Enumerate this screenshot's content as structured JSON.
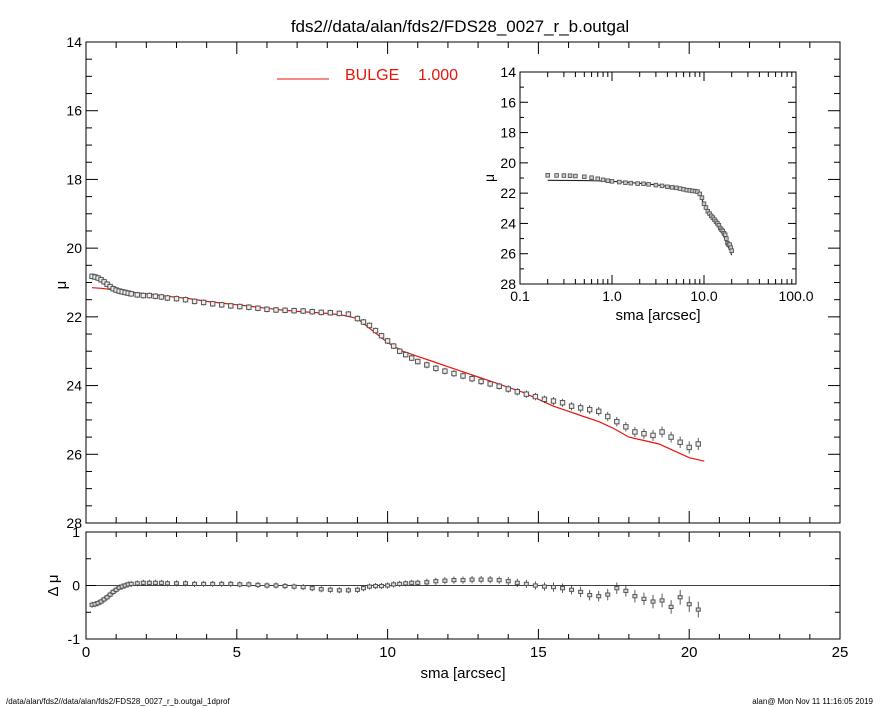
{
  "title": "fds2//data/alan/fds2/FDS28_0027_r_b.outgal",
  "footer": {
    "left": "/data/alan/fds2//data/alan/fds2/FDS28_0027_r_b.outgal_1dprof",
    "right": "alan@  Mon Nov 11 11:16:05 2019"
  },
  "colors": {
    "model": "#e8140a",
    "data": "#555555",
    "axes": "#000000"
  },
  "chart_data": [
    {
      "id": "main",
      "type": "line",
      "title": "fds2//data/alan/fds2/FDS28_0027_r_b.outgal",
      "xlabel": "",
      "ylabel": "μ",
      "xlim": [
        0,
        25
      ],
      "ylim": [
        28,
        14
      ],
      "y_inverted": true,
      "y_ticks": [
        14,
        16,
        18,
        20,
        22,
        24,
        26,
        28
      ],
      "legend": {
        "label": "BULGE",
        "value": "1.000",
        "position": "top-left"
      },
      "series": [
        {
          "name": "BULGE",
          "style": "line",
          "x": [
            0.2,
            0.5,
            1.0,
            1.5,
            2.0,
            2.5,
            3.0,
            3.5,
            4.0,
            4.5,
            5.0,
            5.5,
            6.0,
            6.5,
            7.0,
            7.5,
            8.0,
            8.5,
            9.0,
            9.5,
            10.0,
            10.5,
            11.0,
            11.5,
            12.0,
            12.5,
            13.0,
            13.5,
            14.0,
            14.5,
            15.0,
            15.5,
            16.0,
            16.5,
            17.0,
            17.5,
            18.0,
            18.5,
            19.0,
            19.5,
            20.0,
            20.5
          ],
          "y": [
            21.15,
            21.17,
            21.22,
            21.28,
            21.33,
            21.38,
            21.43,
            21.48,
            21.55,
            21.6,
            21.65,
            21.7,
            21.75,
            21.8,
            21.84,
            21.87,
            21.9,
            21.95,
            22.05,
            22.4,
            22.75,
            23.0,
            23.15,
            23.3,
            23.45,
            23.6,
            23.75,
            23.9,
            24.05,
            24.2,
            24.4,
            24.6,
            24.75,
            24.9,
            25.05,
            25.25,
            25.5,
            25.6,
            25.7,
            25.9,
            26.1,
            26.2
          ]
        },
        {
          "name": "",
          "style": "markers",
          "x": [
            0.2,
            0.3,
            0.4,
            0.5,
            0.6,
            0.7,
            0.8,
            0.9,
            1.0,
            1.1,
            1.2,
            1.3,
            1.4,
            1.5,
            1.7,
            1.9,
            2.1,
            2.3,
            2.5,
            2.7,
            3.0,
            3.3,
            3.6,
            3.9,
            4.2,
            4.5,
            4.8,
            5.1,
            5.4,
            5.7,
            6.0,
            6.3,
            6.6,
            6.9,
            7.2,
            7.5,
            7.8,
            8.1,
            8.4,
            8.7,
            9.0,
            9.2,
            9.4,
            9.6,
            9.8,
            10.0,
            10.2,
            10.4,
            10.6,
            10.8,
            11.0,
            11.3,
            11.6,
            11.9,
            12.2,
            12.5,
            12.8,
            13.1,
            13.4,
            13.7,
            14.0,
            14.3,
            14.6,
            14.9,
            15.2,
            15.5,
            15.8,
            16.1,
            16.4,
            16.7,
            17.0,
            17.3,
            17.6,
            17.9,
            18.2,
            18.5,
            18.8,
            19.1,
            19.4,
            19.7,
            20.0,
            20.3
          ],
          "y": [
            20.82,
            20.84,
            20.87,
            20.92,
            20.98,
            21.05,
            21.12,
            21.18,
            21.22,
            21.25,
            21.27,
            21.29,
            21.31,
            21.33,
            21.36,
            21.38,
            21.38,
            21.4,
            21.42,
            21.45,
            21.47,
            21.5,
            21.55,
            21.58,
            21.62,
            21.65,
            21.68,
            21.7,
            21.72,
            21.75,
            21.78,
            21.8,
            21.81,
            21.82,
            21.83,
            21.85,
            21.87,
            21.88,
            21.9,
            21.92,
            22.05,
            22.15,
            22.25,
            22.4,
            22.55,
            22.7,
            22.85,
            23.0,
            23.1,
            23.2,
            23.3,
            23.4,
            23.5,
            23.58,
            23.65,
            23.72,
            23.8,
            23.88,
            23.95,
            24.02,
            24.1,
            24.18,
            24.25,
            24.32,
            24.4,
            24.45,
            24.5,
            24.6,
            24.65,
            24.7,
            24.75,
            24.9,
            25.05,
            25.2,
            25.35,
            25.4,
            25.45,
            25.35,
            25.5,
            25.65,
            25.8,
            25.7
          ],
          "err": [
            0.03,
            0.03,
            0.03,
            0.03,
            0.03,
            0.03,
            0.03,
            0.03,
            0.03,
            0.03,
            0.03,
            0.03,
            0.03,
            0.03,
            0.03,
            0.03,
            0.03,
            0.03,
            0.03,
            0.03,
            0.03,
            0.03,
            0.03,
            0.03,
            0.03,
            0.03,
            0.03,
            0.03,
            0.03,
            0.03,
            0.03,
            0.03,
            0.03,
            0.03,
            0.03,
            0.03,
            0.03,
            0.03,
            0.03,
            0.03,
            0.03,
            0.03,
            0.03,
            0.03,
            0.03,
            0.03,
            0.03,
            0.03,
            0.03,
            0.03,
            0.03,
            0.04,
            0.04,
            0.04,
            0.04,
            0.04,
            0.04,
            0.04,
            0.04,
            0.04,
            0.05,
            0.05,
            0.05,
            0.05,
            0.05,
            0.06,
            0.06,
            0.06,
            0.07,
            0.07,
            0.07,
            0.08,
            0.08,
            0.08,
            0.09,
            0.09,
            0.1,
            0.1,
            0.1,
            0.11,
            0.12,
            0.12
          ]
        }
      ]
    },
    {
      "id": "residual",
      "type": "scatter",
      "xlabel": "sma [arcsec]",
      "ylabel": "Δ μ",
      "xlim": [
        0,
        25
      ],
      "ylim": [
        -1,
        1
      ],
      "x_ticks": [
        0,
        5,
        10,
        15,
        20,
        25
      ],
      "y_ticks": [
        -1,
        0,
        1
      ],
      "zero_line": true,
      "series": [
        {
          "name": "",
          "x": [
            0.2,
            0.3,
            0.4,
            0.5,
            0.6,
            0.7,
            0.8,
            0.9,
            1.0,
            1.1,
            1.2,
            1.3,
            1.4,
            1.5,
            1.7,
            1.9,
            2.1,
            2.3,
            2.5,
            2.7,
            3.0,
            3.3,
            3.6,
            3.9,
            4.2,
            4.5,
            4.8,
            5.1,
            5.4,
            5.7,
            6.0,
            6.3,
            6.6,
            6.9,
            7.2,
            7.5,
            7.8,
            8.1,
            8.4,
            8.7,
            9.0,
            9.2,
            9.4,
            9.6,
            9.8,
            10.0,
            10.2,
            10.4,
            10.6,
            10.8,
            11.0,
            11.3,
            11.6,
            11.9,
            12.2,
            12.5,
            12.8,
            13.1,
            13.4,
            13.7,
            14.0,
            14.3,
            14.6,
            14.9,
            15.2,
            15.5,
            15.8,
            16.1,
            16.4,
            16.7,
            17.0,
            17.3,
            17.6,
            17.9,
            18.2,
            18.5,
            18.8,
            19.1,
            19.4,
            19.7,
            20.0,
            20.3
          ],
          "y": [
            -0.36,
            -0.35,
            -0.33,
            -0.3,
            -0.26,
            -0.22,
            -0.17,
            -0.12,
            -0.08,
            -0.04,
            -0.02,
            0.0,
            0.02,
            0.03,
            0.04,
            0.05,
            0.05,
            0.05,
            0.05,
            0.04,
            0.04,
            0.04,
            0.03,
            0.03,
            0.03,
            0.03,
            0.03,
            0.02,
            0.02,
            0.01,
            0.0,
            0.0,
            -0.01,
            -0.02,
            -0.03,
            -0.05,
            -0.07,
            -0.08,
            -0.09,
            -0.09,
            -0.08,
            -0.05,
            -0.02,
            -0.01,
            -0.01,
            0.0,
            0.02,
            0.03,
            0.04,
            0.05,
            0.05,
            0.06,
            0.08,
            0.09,
            0.1,
            0.1,
            0.11,
            0.11,
            0.11,
            0.1,
            0.08,
            0.05,
            0.03,
            0.0,
            -0.02,
            -0.03,
            -0.05,
            -0.08,
            -0.12,
            -0.18,
            -0.2,
            -0.17,
            -0.05,
            -0.1,
            -0.2,
            -0.25,
            -0.3,
            -0.28,
            -0.4,
            -0.22,
            -0.35,
            -0.45
          ],
          "err": [
            0.02,
            0.02,
            0.02,
            0.02,
            0.02,
            0.02,
            0.02,
            0.02,
            0.02,
            0.02,
            0.02,
            0.02,
            0.02,
            0.02,
            0.02,
            0.02,
            0.02,
            0.02,
            0.02,
            0.02,
            0.02,
            0.02,
            0.02,
            0.02,
            0.02,
            0.02,
            0.02,
            0.02,
            0.02,
            0.02,
            0.02,
            0.02,
            0.02,
            0.02,
            0.02,
            0.02,
            0.02,
            0.02,
            0.02,
            0.02,
            0.02,
            0.02,
            0.02,
            0.02,
            0.02,
            0.02,
            0.02,
            0.02,
            0.02,
            0.02,
            0.02,
            0.03,
            0.03,
            0.03,
            0.03,
            0.03,
            0.03,
            0.03,
            0.03,
            0.03,
            0.04,
            0.04,
            0.04,
            0.04,
            0.04,
            0.05,
            0.05,
            0.05,
            0.06,
            0.06,
            0.06,
            0.07,
            0.07,
            0.07,
            0.08,
            0.08,
            0.09,
            0.09,
            0.09,
            0.1,
            0.11,
            0.11
          ]
        }
      ]
    },
    {
      "id": "inset",
      "type": "scatter",
      "xlabel": "sma [arcsec]",
      "ylabel": "μ",
      "xscale": "log",
      "xlim": [
        0.1,
        100
      ],
      "ylim": [
        28,
        14
      ],
      "y_inverted": true,
      "x_ticks": [
        0.1,
        1.0,
        10.0,
        100.0
      ],
      "x_tick_labels": [
        "0.1",
        "1.0",
        "10.0",
        "100.0"
      ],
      "y_ticks": [
        14,
        16,
        18,
        20,
        22,
        24,
        26,
        28
      ],
      "series": [
        {
          "name": "",
          "style": "line",
          "x": [
            0.2,
            0.3,
            0.5,
            0.8,
            1.0,
            1.5,
            2.0,
            3.0,
            4.0,
            5.0,
            6.0,
            7.0,
            8.0,
            9.0,
            10.0,
            11.0,
            12.0,
            13.0,
            14.0,
            15.0,
            16.0,
            17.0,
            18.0,
            19.0,
            20.0
          ],
          "y": [
            21.15,
            21.16,
            21.17,
            21.2,
            21.22,
            21.3,
            21.35,
            21.45,
            21.55,
            21.65,
            21.75,
            21.82,
            21.9,
            22.05,
            22.75,
            23.15,
            23.45,
            23.75,
            24.05,
            24.4,
            24.75,
            25.05,
            25.5,
            25.7,
            26.1
          ]
        },
        {
          "name": "",
          "style": "markers",
          "x": [
            0.2,
            0.25,
            0.3,
            0.35,
            0.4,
            0.5,
            0.6,
            0.7,
            0.8,
            0.9,
            1.0,
            1.2,
            1.4,
            1.6,
            1.9,
            2.2,
            2.5,
            3.0,
            3.5,
            4.0,
            4.5,
            5.0,
            5.5,
            6.0,
            6.5,
            7.0,
            7.5,
            8.0,
            8.5,
            9.0,
            9.5,
            10.0,
            10.5,
            11.0,
            11.5,
            12.0,
            12.5,
            13.0,
            13.5,
            14.0,
            14.5,
            15.0,
            15.5,
            16.0,
            16.5,
            17.0,
            17.5,
            18.0,
            18.5,
            19.0,
            19.5,
            20.0
          ],
          "y": [
            20.82,
            20.83,
            20.84,
            20.85,
            20.87,
            20.92,
            20.98,
            21.05,
            21.12,
            21.18,
            21.22,
            21.27,
            21.31,
            21.34,
            21.37,
            21.38,
            21.42,
            21.47,
            21.52,
            21.58,
            21.62,
            21.65,
            21.7,
            21.75,
            21.8,
            21.82,
            21.85,
            21.87,
            21.9,
            22.05,
            22.3,
            22.7,
            22.95,
            23.2,
            23.35,
            23.5,
            23.62,
            23.75,
            23.88,
            24.0,
            24.12,
            24.3,
            24.42,
            24.5,
            24.65,
            24.75,
            25.0,
            25.3,
            25.4,
            25.4,
            25.6,
            25.8
          ]
        }
      ]
    }
  ]
}
